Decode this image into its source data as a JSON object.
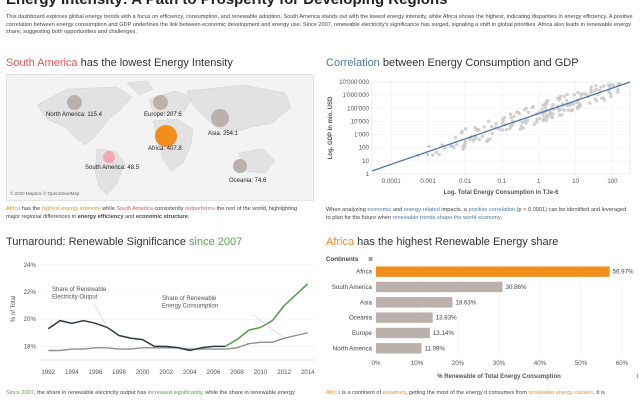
{
  "title": "Energy Intensity: A Path to Prosperity for Developing Regions",
  "intro": "This dashboard explores global energy trends with a focus on efficiency, consumption, and renewable adoption. South America stands out with the lowest energy intensity, while Africa shows the highest, indicating disparities in energy efficiency. A positive correlation between energy consumption and GDP underlines the link between economic development and energy use. Since 2007, renewable electricity's significance has surged, signaling a shift in global priorities. Africa also leads in renewable energy share, suggesting both opportunities and challenges.",
  "colors": {
    "orange": "#f28e1c",
    "red": "#e15759",
    "blue": "#4e79a7",
    "green": "#59a14f",
    "bar": "#bab0ac"
  },
  "map": {
    "heading_hl": "South America",
    "heading_rest": " has the lowest Energy Intensity",
    "attribution": "© 2020 Mapbox © OpenStreetMap",
    "regions": [
      {
        "label": "North America: 115.4",
        "value": 115.4
      },
      {
        "label": "Europe: 207.6",
        "value": 207.6
      },
      {
        "label": "Asia: 254.1",
        "value": 254.1
      },
      {
        "label": "Africa: 407.8",
        "value": 407.8
      },
      {
        "label": "South America: 48.5",
        "value": 48.5
      },
      {
        "label": "Oceania: 74.6",
        "value": 74.6
      }
    ],
    "caption": {
      "p1": "Africa",
      "p2": " has the ",
      "p3": "highest energy intensity",
      "p4": " while ",
      "p5": "South America",
      "p6": " consistently ",
      "p7": "outperforms",
      "p8": " the rest of the world, highlighting major regional differences in ",
      "p9": "energy efficiency",
      "p10": " and ",
      "p11": "economic structure",
      "p12": "."
    }
  },
  "scatter": {
    "heading_hl": "Correlation",
    "heading_rest": " between Energy Consumption and GDP",
    "caption": {
      "p1": "When analyzing ",
      "p2": "economic",
      "p3": " and ",
      "p4": "energy-related",
      "p5": " impacts, a ",
      "p6": "positive correlation",
      "p7": " (p < 0.0001) can be identified and leveraged to plan for the future when ",
      "p8": "renewable trends shape the world economy",
      "p9": "."
    }
  },
  "line": {
    "heading_rest": "Turnaround: Renewable Significance ",
    "heading_hl": "since 2007",
    "caption": {
      "p1": "Since 2007",
      "p2": ", the share in renewable electricity output has ",
      "p3": "increased significantly",
      "p4": ", while the share in renewable energy"
    }
  },
  "bars": {
    "heading_hl": "Africa",
    "heading_rest": " has  the highest Renewable Energy share",
    "caption": {
      "p1": "Africa",
      "p2": " is a continent of ",
      "p3": "extremes",
      "p4": ", getting the most of the energy it consumes  from ",
      "p5": "renewable energy carriers",
      "p6": ". It is"
    }
  },
  "chart_data": [
    {
      "type": "scatter",
      "title": "Correlation between Energy Consumption and GDP",
      "xlabel": "Log. Total Energy Consumption in TJe-6",
      "ylabel": "Log. GDP in mio. USD",
      "xscale": "log",
      "yscale": "log",
      "xticks": [
        "0.0001",
        "0.001",
        "0.01",
        "0.1",
        "1",
        "10",
        "100"
      ],
      "yticks": [
        "10'000'000",
        "1'000'000",
        "100'000",
        "10'000",
        "1'000",
        "100",
        "10",
        "1"
      ],
      "xlim": [
        3e-05,
        300
      ],
      "ylim": [
        1,
        10000000
      ],
      "trendline": {
        "x": [
          3e-05,
          300
        ],
        "y": [
          1.7,
          10000000
        ]
      }
    },
    {
      "type": "line",
      "title": "Turnaround: Renewable Significance since 2007",
      "ylabel": "% of Total",
      "x": [
        1992,
        1993,
        1994,
        1995,
        1996,
        1997,
        1998,
        1999,
        2000,
        2001,
        2002,
        2003,
        2004,
        2005,
        2006,
        2007,
        2008,
        2009,
        2010,
        2011,
        2012,
        2013,
        2014
      ],
      "xticks": [
        "1992",
        "1994",
        "1996",
        "1998",
        "2000",
        "2002",
        "2004",
        "2006",
        "2008",
        "2010",
        "2012",
        "2014"
      ],
      "yticks": [
        "24%",
        "22%",
        "20%",
        "18%"
      ],
      "ylim": [
        17,
        24.5
      ],
      "series": [
        {
          "name": "Share of Renewable Electricity Output",
          "values": [
            19.3,
            19.9,
            19.7,
            19.9,
            19.7,
            19.4,
            18.8,
            18.6,
            18.5,
            18.0,
            18.0,
            17.9,
            17.7,
            17.9,
            18.0,
            18.0,
            18.5,
            19.2,
            19.4,
            19.9,
            21.0,
            21.8,
            22.6
          ]
        },
        {
          "name": "Share of Renewable Energy Consumption",
          "values": [
            17.7,
            17.7,
            17.8,
            17.8,
            17.9,
            17.9,
            17.8,
            17.8,
            17.9,
            17.9,
            17.9,
            17.9,
            17.8,
            17.8,
            17.8,
            17.8,
            17.9,
            18.2,
            18.3,
            18.3,
            18.6,
            18.8,
            19.0
          ]
        }
      ],
      "annotations": [
        "Share of Renewable Electricity Output",
        "Share of Renewable Energy Consumption"
      ]
    },
    {
      "type": "bar",
      "orientation": "horizontal",
      "title": "Africa has the highest Renewable Energy share",
      "legend_title": "Continents",
      "xlabel": "% Renewable of Total Energy Consumption",
      "categories": [
        "Africa",
        "South America",
        "Asia",
        "Oceania",
        "Europe",
        "North America"
      ],
      "values": [
        56.97,
        30.86,
        18.63,
        13.83,
        13.14,
        11.09
      ],
      "labels": [
        "56.97%",
        "30.86%",
        "18.63%",
        "13.83%",
        "13.14%",
        "11.09%"
      ],
      "xticks": [
        "0%",
        "10%",
        "20%",
        "30%",
        "40%",
        "50%",
        "60%"
      ],
      "xlim": [
        0,
        60
      ]
    }
  ]
}
